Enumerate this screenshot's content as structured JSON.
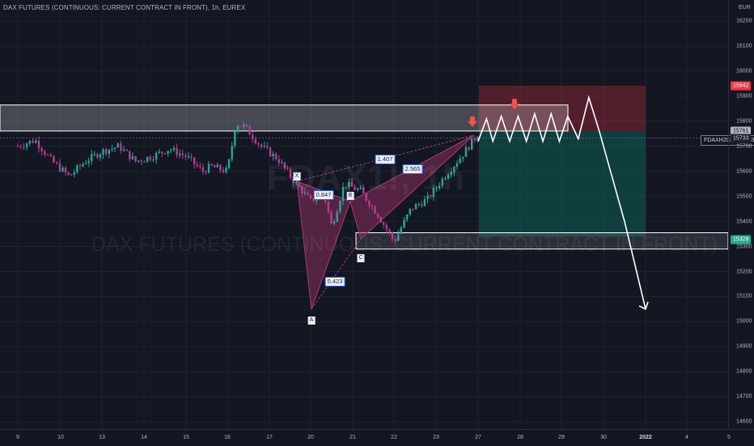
{
  "chart": {
    "title": "DAX FUTURES (CONTINUOUS: CURRENT CONTRACT IN FRONT), 1h, EUREX",
    "watermark_symbol": "FDAX1!, 1h",
    "watermark_description": "DAX FUTURES (CONTINUOUS: CURRENT CONTRACT IN FRONT)",
    "currency": "EUR",
    "symbol_tag": "FDAXH2022",
    "symbol_value": "15733"
  },
  "price_axis": [
    "16200",
    "16100",
    "16000",
    "15900",
    "15800",
    "15700",
    "15600",
    "15500",
    "15400",
    "15300",
    "15200",
    "15100",
    "15000",
    "14900",
    "14800",
    "14700",
    "14600"
  ],
  "price_tags": [
    {
      "value": "15942",
      "color": "#f23645",
      "text": "#ffffff"
    },
    {
      "value": "15761",
      "color": "#b2b5be",
      "text": "#131722"
    },
    {
      "value": "15733",
      "color": "#1e222d",
      "text": "#d1d4dc"
    },
    {
      "value": "15328",
      "color": "#22ab94",
      "text": "#ffffff"
    }
  ],
  "time_axis": [
    "9",
    "10",
    "13",
    "14",
    "15",
    "16",
    "17",
    "20",
    "21",
    "22",
    "23",
    "27",
    "28",
    "29",
    "30",
    "2022",
    "4",
    "5"
  ],
  "pattern_points": [
    "X",
    "A",
    "B",
    "C"
  ],
  "fib_ratios": [
    "0.847",
    "0.423",
    "1.407",
    "2.565"
  ],
  "colors": {
    "background": "#131722",
    "bull": "#26a69a",
    "bear": "#ef5350",
    "pattern_fill": "#8b2e5f",
    "stop_zone": "#f23645",
    "target_zone": "#089981",
    "zone_box": "#ffffff"
  },
  "chart_data": {
    "type": "candlestick",
    "instrument": "DAX FUTURES (CONTINUOUS: CURRENT CONTRACT IN FRONT)",
    "timeframe": "1h",
    "exchange": "EUREX",
    "ylim": [
      14570,
      16240
    ],
    "resistance_zone": [
      15761,
      15865
    ],
    "support_zone": [
      15290,
      15355
    ],
    "risk_reward": {
      "entry": 15761,
      "stop": 15942,
      "target": 15340
    },
    "harmonic": {
      "X": 15560,
      "A": 15050,
      "B": 15480,
      "C": 15330
    },
    "path": [
      [
        0,
        15700
      ],
      [
        0.4,
        15725
      ],
      [
        0.8,
        15640
      ],
      [
        1.2,
        15580
      ],
      [
        1.6,
        15640
      ],
      [
        2.0,
        15680
      ],
      [
        2.4,
        15700
      ],
      [
        2.8,
        15640
      ],
      [
        3.2,
        15660
      ],
      [
        3.6,
        15690
      ],
      [
        4.0,
        15660
      ],
      [
        4.4,
        15600
      ],
      [
        4.6,
        15620
      ],
      [
        5.0,
        15600
      ],
      [
        5.2,
        15790
      ],
      [
        5.4,
        15780
      ],
      [
        5.8,
        15700
      ],
      [
        6.2,
        15650
      ],
      [
        6.6,
        15560
      ],
      [
        7.0,
        15480
      ],
      [
        7.3,
        15520
      ],
      [
        7.5,
        15380
      ],
      [
        7.8,
        15550
      ],
      [
        8.2,
        15520
      ],
      [
        8.6,
        15430
      ],
      [
        9.0,
        15320
      ],
      [
        9.4,
        15450
      ],
      [
        9.8,
        15490
      ],
      [
        10.2,
        15580
      ],
      [
        10.6,
        15660
      ],
      [
        11.0,
        15750
      ]
    ],
    "projection": [
      [
        11.0,
        15720
      ],
      [
        11.2,
        15810
      ],
      [
        11.35,
        15720
      ],
      [
        11.55,
        15820
      ],
      [
        11.75,
        15720
      ],
      [
        11.95,
        15820
      ],
      [
        12.15,
        15720
      ],
      [
        12.35,
        15830
      ],
      [
        12.55,
        15720
      ],
      [
        12.75,
        15830
      ],
      [
        12.95,
        15720
      ],
      [
        13.15,
        15820
      ],
      [
        13.4,
        15730
      ],
      [
        13.65,
        15895
      ],
      [
        13.9,
        15760
      ],
      [
        14.5,
        15400
      ],
      [
        15.0,
        15050
      ]
    ]
  }
}
